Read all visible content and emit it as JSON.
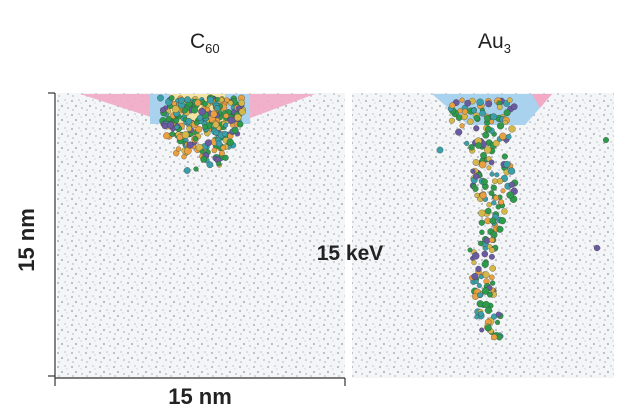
{
  "panels": [
    {
      "label": "C",
      "subscript": "60"
    },
    {
      "label": "Au",
      "subscript": "3"
    }
  ],
  "center_label": "15 keV",
  "axes": {
    "y_label": "15 nm",
    "x_label": "15 nm"
  }
}
